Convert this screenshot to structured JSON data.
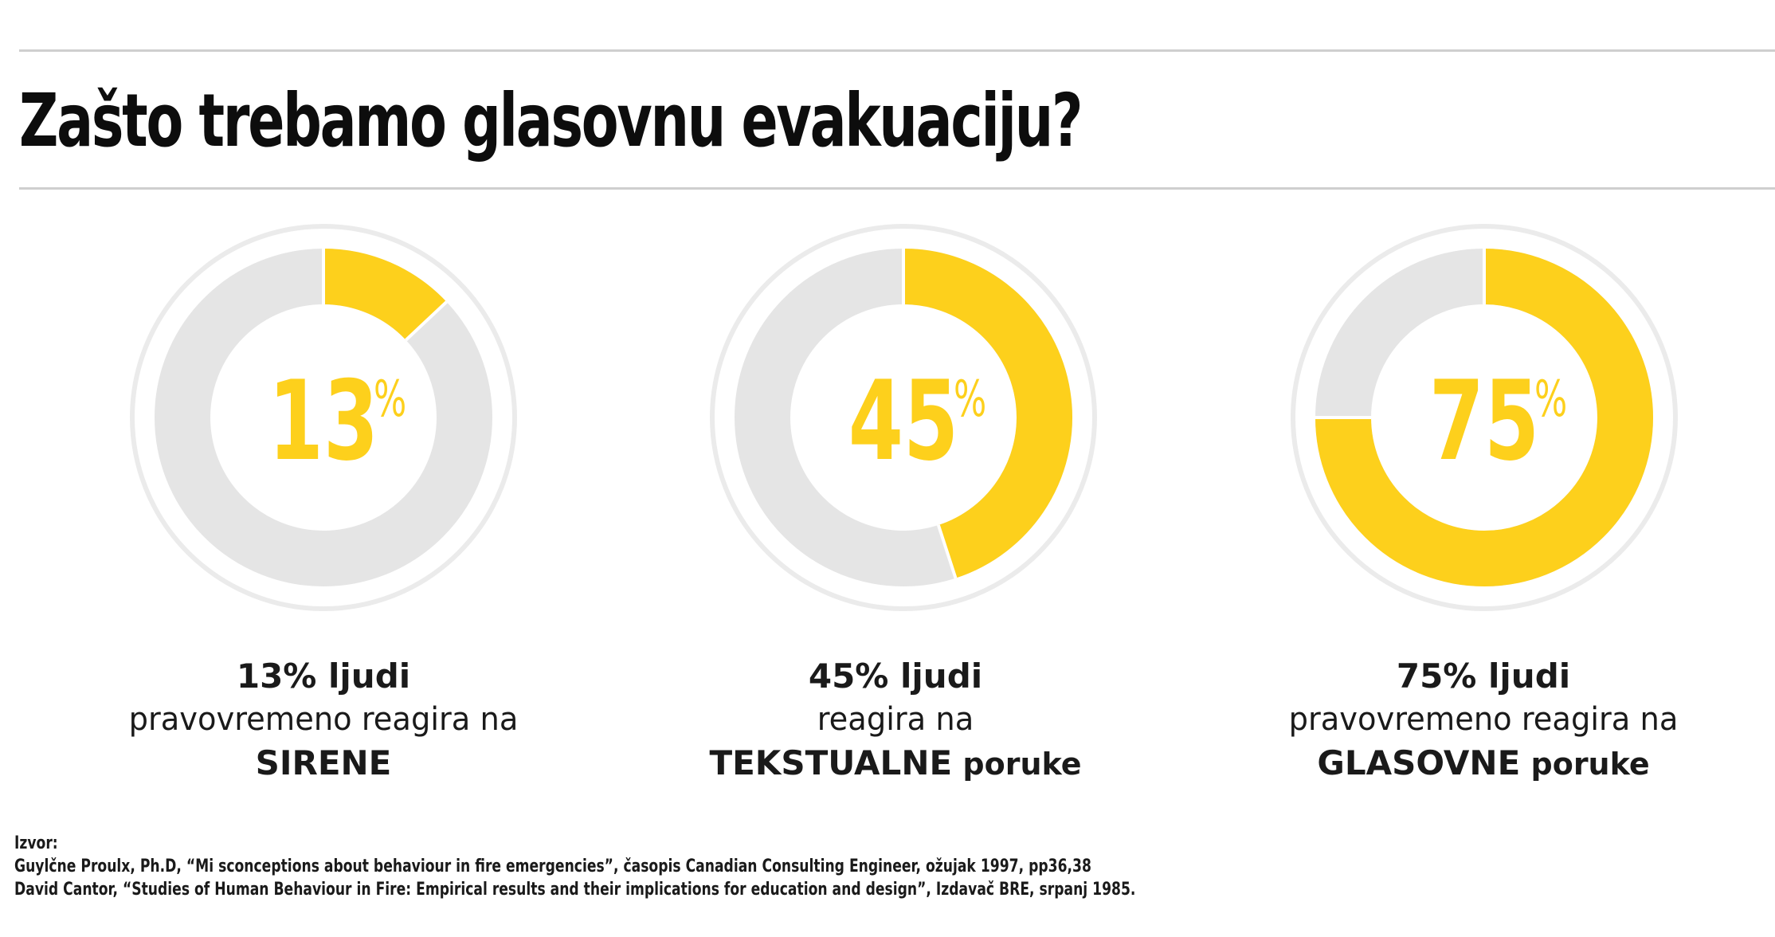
{
  "title": "Zašto trebamo glasovnu evakuaciju?",
  "colors": {
    "accent": "#fdd01c",
    "track": "#e5e5e5",
    "outer_ring": "#ebebeb",
    "text": "#111111"
  },
  "chart_data": [
    {
      "type": "pie",
      "value": 13,
      "unit": "%",
      "value_label": "13",
      "caption_line1": "13% ljudi",
      "caption_line2": "pravovremeno reagira na",
      "caption_strong": "SIRENE",
      "caption_rest": ""
    },
    {
      "type": "pie",
      "value": 45,
      "unit": "%",
      "value_label": "45",
      "caption_line1": "45% ljudi",
      "caption_line2": "reagira na",
      "caption_strong": "TEKSTUALNE",
      "caption_rest": " poruke"
    },
    {
      "type": "pie",
      "value": 75,
      "unit": "%",
      "value_label": "75",
      "caption_line1": "75% ljudi",
      "caption_line2": "pravovremeno reagira na",
      "caption_strong": "GLASOVNE",
      "caption_rest": " poruke"
    }
  ],
  "source": {
    "label": "Izvor:",
    "lines": [
      "Guylčne Proulx, Ph.D, “Mi sconceptions about behaviour in fire emergencies”, časopis Canadian Consulting Engineer, ožujak 1997, pp36,38",
      "David Cantor, “Studies of Human Behaviour in Fire: Empirical results and their implications for education and design”, Izdavač BRE, srpanj 1985."
    ]
  }
}
